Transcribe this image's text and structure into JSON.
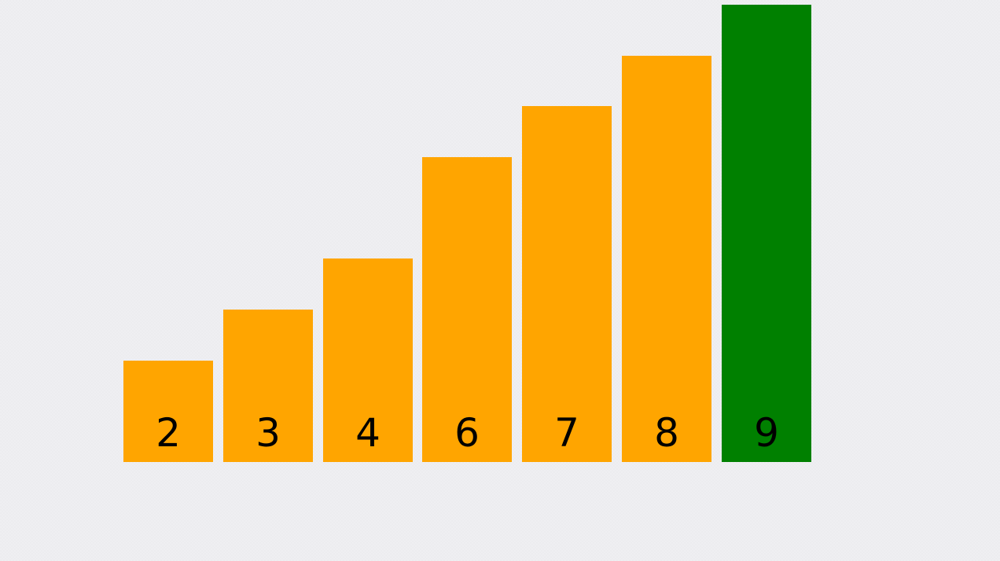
{
  "chart_data": {
    "type": "bar",
    "title": "",
    "xlabel": "",
    "ylabel": "",
    "categories": [
      "2",
      "3",
      "4",
      "6",
      "7",
      "8",
      "9"
    ],
    "values": [
      2,
      3,
      4,
      6,
      7,
      8,
      9
    ],
    "ylim": [
      0,
      9
    ],
    "grid": false,
    "legend": "none",
    "highlighted_index": 6,
    "colors": {
      "bar": "#FFA500",
      "highlight": "#008000",
      "label": "#000000"
    }
  }
}
